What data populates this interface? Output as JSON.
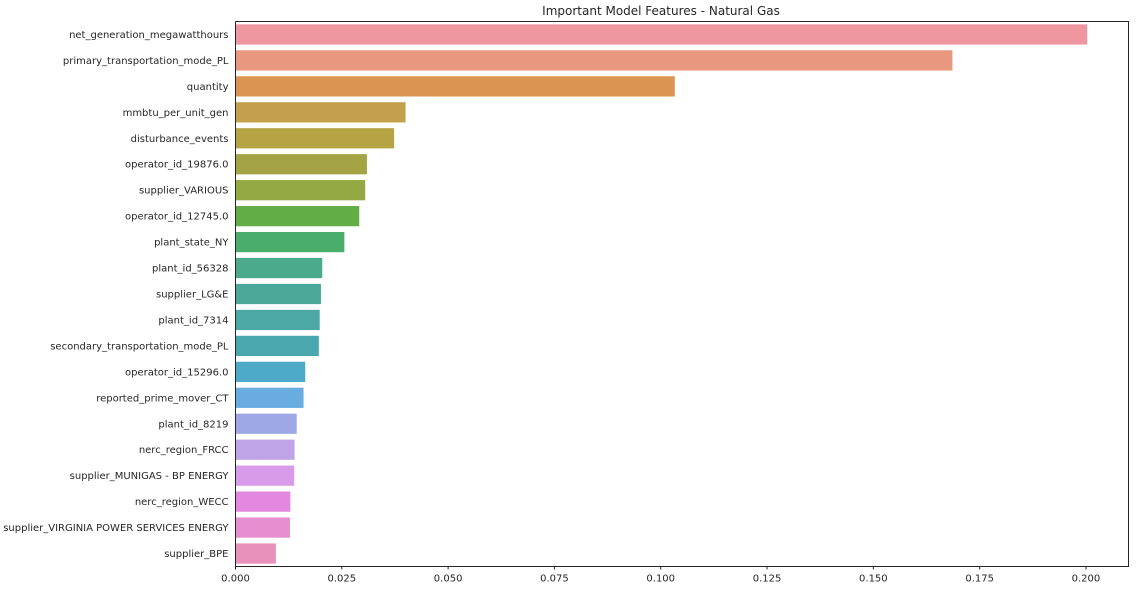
{
  "chart_data": {
    "type": "bar",
    "orientation": "horizontal",
    "title": "Important Model Features - Natural Gas",
    "xlabel": "",
    "ylabel": "",
    "xlim": [
      0,
      0.21
    ],
    "xticks": [
      "0.000",
      "0.025",
      "0.050",
      "0.075",
      "0.100",
      "0.125",
      "0.150",
      "0.175",
      "0.200"
    ],
    "grid": false,
    "categories": [
      "net_generation_megawatthours",
      "primary_transportation_mode_PL",
      "quantity",
      "mmbtu_per_unit_gen",
      "disturbance_events",
      "operator_id_19876.0",
      "supplier_VARIOUS",
      "operator_id_12745.0",
      "plant_state_NY",
      "plant_id_56328",
      "supplier_LG&E",
      "plant_id_7314",
      "secondary_transportation_mode_PL",
      "operator_id_15296.0",
      "reported_prime_mover_CT",
      "plant_id_8219",
      "nerc_region_FRCC",
      "supplier_MUNIGAS - BP ENERGY",
      "nerc_region_WECC",
      "supplier_VIRGINIA POWER SERVICES ENERGY",
      "supplier_BPE"
    ],
    "values": [
      0.2003,
      0.1686,
      0.1033,
      0.04,
      0.0373,
      0.0309,
      0.0305,
      0.0291,
      0.0256,
      0.0204,
      0.0201,
      0.0198,
      0.0196,
      0.0164,
      0.016,
      0.0144,
      0.0139,
      0.0138,
      0.0129,
      0.0128,
      0.0095
    ],
    "colors": [
      "#ee97a1",
      "#e8987f",
      "#db9451",
      "#c4a04c",
      "#b5a344",
      "#a5a444",
      "#94a844",
      "#63ad47",
      "#4aad6c",
      "#4caa8c",
      "#4ca99a",
      "#4ba8a5",
      "#4aa7ae",
      "#4ca9c7",
      "#68ace0",
      "#9fa8e7",
      "#bfa4e7",
      "#d89bea",
      "#e487e0",
      "#e68ed0",
      "#e891ba"
    ]
  }
}
